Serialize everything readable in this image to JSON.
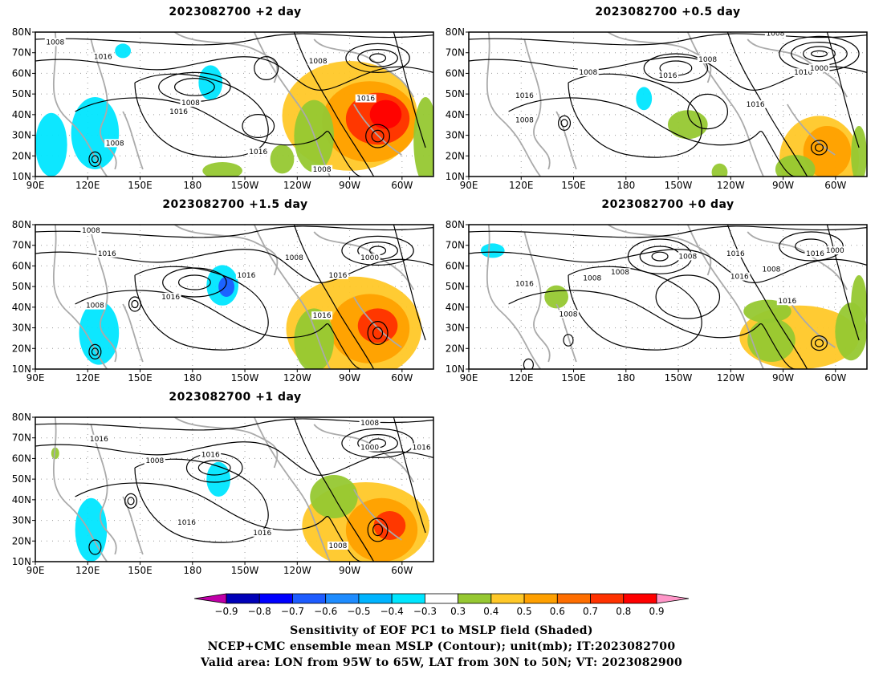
{
  "panels": [
    {
      "title": "2023082700  +2 day"
    },
    {
      "title": "2023082700  +0.5 day"
    },
    {
      "title": "2023082700  +1.5 day"
    },
    {
      "title": "2023082700  +0 day"
    },
    {
      "title": "2023082700  +1 day"
    }
  ],
  "axes": {
    "lat_ticks": [
      "10N",
      "20N",
      "30N",
      "40N",
      "50N",
      "60N",
      "70N",
      "80N"
    ],
    "lon_ticks": [
      "90E",
      "120E",
      "150E",
      "180",
      "150W",
      "120W",
      "90W",
      "60W"
    ]
  },
  "contour_labels": {
    "p0": [
      "1008",
      "1016",
      "1008",
      "1008",
      "1016",
      "1016",
      "1008",
      "1016",
      "1008"
    ],
    "p1": [
      "1008",
      "1008",
      "1008",
      "1016",
      "1016",
      "1000",
      "1016",
      "1016",
      "1008"
    ],
    "p2": [
      "1008",
      "1016",
      "1008",
      "1016",
      "1016",
      "1008",
      "1000",
      "1016",
      "1016"
    ],
    "p3": [
      "1016",
      "1008",
      "1008",
      "1016",
      "1008",
      "1000",
      "1016",
      "1016",
      "1008",
      "1016",
      "1008"
    ],
    "p4": [
      "1016",
      "1008",
      "1016",
      "1016",
      "1016",
      "1008",
      "1000",
      "1016",
      "1008"
    ]
  },
  "colorbar": {
    "labels": [
      "−0.9",
      "−0.8",
      "−0.7",
      "−0.6",
      "−0.5",
      "−0.4",
      "−0.3",
      "0.3",
      "0.4",
      "0.5",
      "0.6",
      "0.7",
      "0.8",
      "0.9"
    ],
    "colors": [
      "#c000a8",
      "#0000b8",
      "#0000ff",
      "#1e5cff",
      "#1e8cff",
      "#00b4ff",
      "#00e6ff",
      "#ffffff",
      "#96c832",
      "#ffc828",
      "#ffa000",
      "#ff6e00",
      "#ff3200",
      "#ff0000",
      "#ff96c8"
    ]
  },
  "footer": {
    "line1": "Sensitivity of EOF PC1 to MSLP field (Shaded)",
    "line2": "NCEP+CMC ensemble mean MSLP (Contour); unit(mb); IT:2023082700",
    "line3": "Valid area: LON from 95W to 65W, LAT from 30N to 50N; VT: 2023082900"
  }
}
